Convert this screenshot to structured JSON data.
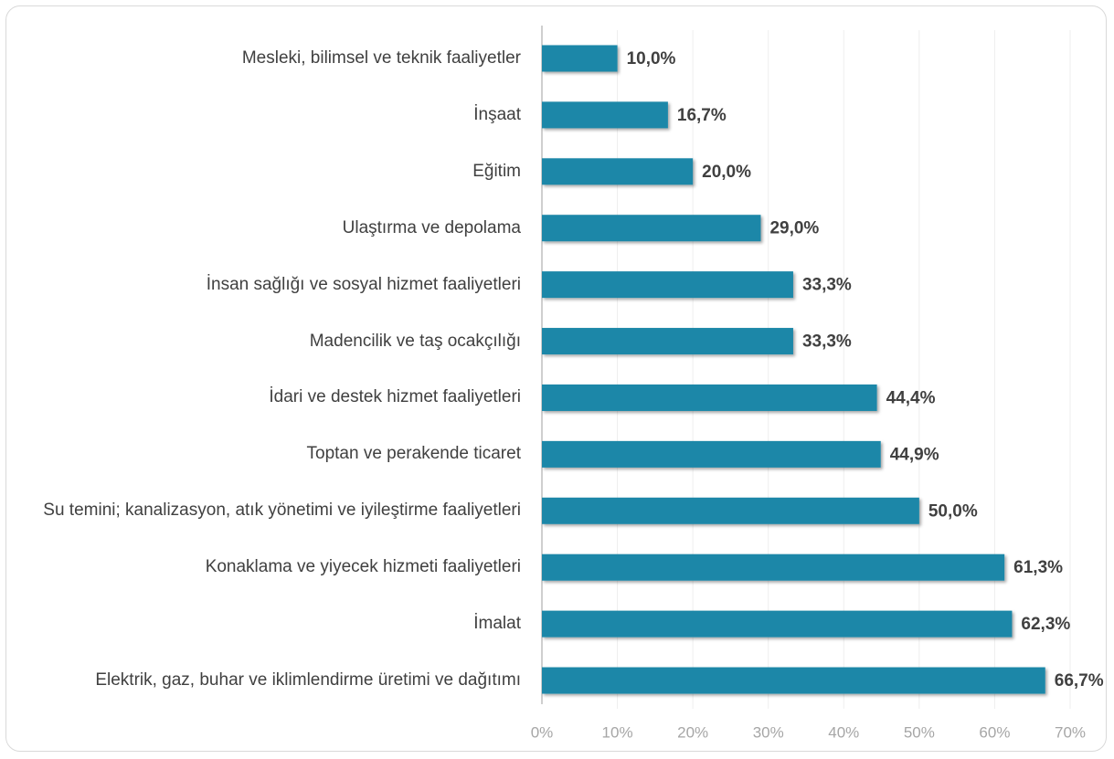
{
  "chart_data": {
    "type": "barh",
    "categories": [
      "Mesleki, bilimsel ve teknik faaliyetler",
      "İnşaat",
      "Eğitim",
      "Ulaştırma ve depolama",
      "İnsan sağlığı ve sosyal hizmet faaliyetleri",
      "Madencilik ve taş ocakçılığı",
      "İdari ve destek hizmet faaliyetleri",
      "Toptan ve perakende ticaret",
      "Su temini; kanalizasyon, atık yönetimi ve iyileştirme faaliyetleri",
      "Konaklama ve yiyecek hizmeti faaliyetleri",
      "İmalat",
      "Elektrik, gaz, buhar ve iklimlendirme üretimi ve dağıtımı"
    ],
    "values": [
      10.0,
      16.7,
      20.0,
      29.0,
      33.3,
      33.3,
      44.4,
      44.9,
      50.0,
      61.3,
      62.3,
      66.7
    ],
    "value_labels": [
      "10,0%",
      "16,7%",
      "20,0%",
      "29,0%",
      "33,3%",
      "33,3%",
      "44,4%",
      "44,9%",
      "50,0%",
      "61,3%",
      "62,3%",
      "66,7%"
    ],
    "color": "#1b87a8",
    "xlim": [
      0,
      70
    ],
    "xticks": [
      {
        "value": 0,
        "label": "0%"
      },
      {
        "value": 10,
        "label": "10%"
      },
      {
        "value": 20,
        "label": "20%"
      },
      {
        "value": 30,
        "label": "30%"
      },
      {
        "value": 40,
        "label": "40%"
      },
      {
        "value": 50,
        "label": "50%"
      },
      {
        "value": 60,
        "label": "60%"
      },
      {
        "value": 70,
        "label": "70%"
      }
    ],
    "grid": true
  }
}
